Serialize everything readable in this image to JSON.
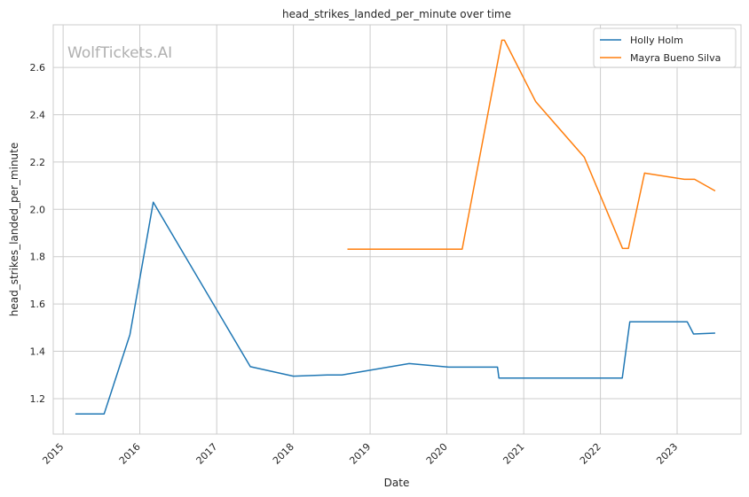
{
  "chart_data": {
    "type": "line",
    "title": "head_strikes_landed_per_minute over time",
    "xlabel": "Date",
    "ylabel": "head_strikes_landed_per_minute",
    "watermark": "WolfTickets.AI",
    "xlim": [
      "2014-11-15",
      "2023-11-01"
    ],
    "ylim": [
      1.05,
      2.78
    ],
    "x_ticks": [
      "2015",
      "2016",
      "2017",
      "2018",
      "2019",
      "2020",
      "2021",
      "2022",
      "2023"
    ],
    "y_ticks": [
      1.2,
      1.4,
      1.6,
      1.8,
      2.0,
      2.2,
      2.4,
      2.6
    ],
    "y_tick_labels": [
      "1.2",
      "1.4",
      "1.6",
      "1.8",
      "2.0",
      "2.2",
      "2.4",
      "2.6"
    ],
    "grid": true,
    "legend_position": "top-right",
    "series": [
      {
        "name": "Holly Holm",
        "color": "#1f77b4",
        "points": [
          [
            "2015-02-28",
            1.135
          ],
          [
            "2015-07-15",
            1.135
          ],
          [
            "2015-11-15",
            1.47
          ],
          [
            "2016-03-05",
            2.03
          ],
          [
            "2017-06-10",
            1.335
          ],
          [
            "2018-01-01",
            1.295
          ],
          [
            "2018-06-10",
            1.3
          ],
          [
            "2018-08-20",
            1.3
          ],
          [
            "2019-07-06",
            1.348
          ],
          [
            "2020-01-10",
            1.333
          ],
          [
            "2020-08-29",
            1.333
          ],
          [
            "2020-09-05",
            1.287
          ],
          [
            "2021-12-01",
            1.287
          ],
          [
            "2022-04-15",
            1.287
          ],
          [
            "2022-05-21",
            1.525
          ],
          [
            "2023-02-18",
            1.525
          ],
          [
            "2023-03-20",
            1.473
          ],
          [
            "2023-07-01",
            1.477
          ]
        ]
      },
      {
        "name": "Mayra Bueno Silva",
        "color": "#ff7f0e",
        "points": [
          [
            "2018-09-15",
            1.832
          ],
          [
            "2020-03-14",
            1.832
          ],
          [
            "2020-09-19",
            2.715
          ],
          [
            "2020-10-01",
            2.715
          ],
          [
            "2021-02-27",
            2.455
          ],
          [
            "2021-10-16",
            2.22
          ],
          [
            "2022-04-16",
            1.835
          ],
          [
            "2022-05-14",
            1.835
          ],
          [
            "2022-07-30",
            2.153
          ],
          [
            "2023-02-04",
            2.127
          ],
          [
            "2023-03-25",
            2.127
          ],
          [
            "2023-07-01",
            2.078
          ]
        ]
      }
    ]
  }
}
